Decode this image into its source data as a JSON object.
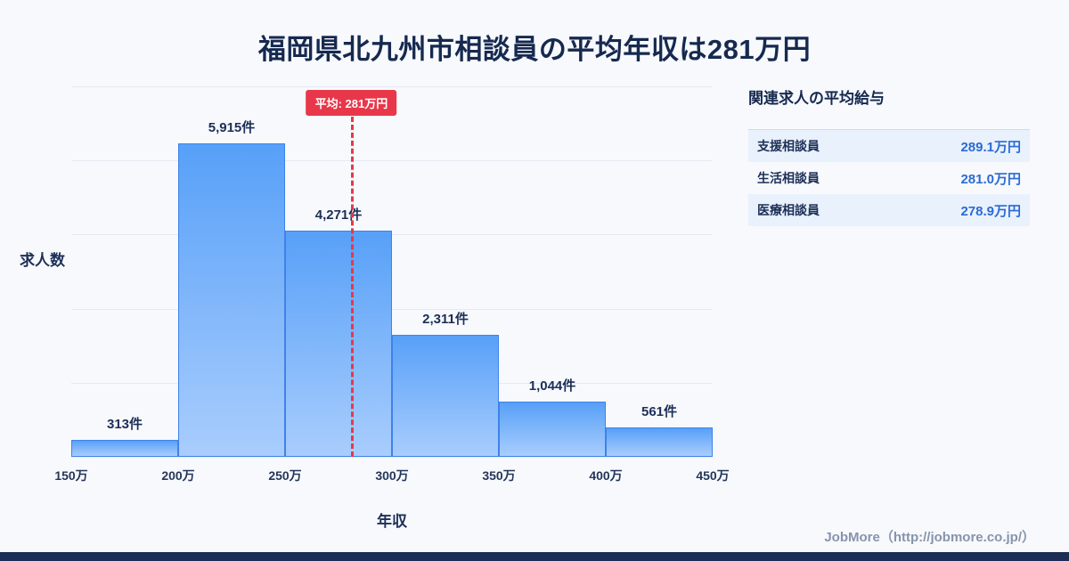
{
  "title": "福岡県北九州市相談員の平均年収は281万円",
  "chart_data": {
    "type": "bar",
    "title": "福岡県北九州市相談員の平均年収は281万円",
    "xlabel": "年収",
    "ylabel": "求人数",
    "categories": [
      "150万",
      "200万",
      "250万",
      "300万",
      "350万",
      "400万",
      "450万"
    ],
    "bin_edges_man_yen": [
      150,
      200,
      250,
      300,
      350,
      400,
      450
    ],
    "values": [
      313,
      5915,
      4271,
      2311,
      1044,
      561
    ],
    "value_labels": [
      "313件",
      "5,915件",
      "4,271件",
      "2,311件",
      "1,044件",
      "561件"
    ],
    "ylim": [
      0,
      7000
    ],
    "grid": true,
    "legend": "none",
    "average_line": {
      "x_man_yen": 281,
      "label": "平均: 281万円",
      "color": "#e8374a"
    }
  },
  "side_panel": {
    "title": "関連求人の平均給与",
    "rows": [
      {
        "label": "支援相談員",
        "value": "289.1万円"
      },
      {
        "label": "生活相談員",
        "value": "281.0万円"
      },
      {
        "label": "医療相談員",
        "value": "278.9万円"
      }
    ]
  },
  "footer": {
    "credit": "JobMore（http://jobmore.co.jp/）"
  },
  "colors": {
    "background": "#f7f9fd",
    "title": "#16294f",
    "bar_top": "#57a0f8",
    "bar_bottom": "#a9cdfd",
    "bar_border": "#3f82e9",
    "average": "#e8374a",
    "panel_value": "#2a6bd4",
    "grid": "#e5eaf3",
    "footer_text": "#8794ab",
    "bottom_strip": "#1c2e56"
  }
}
